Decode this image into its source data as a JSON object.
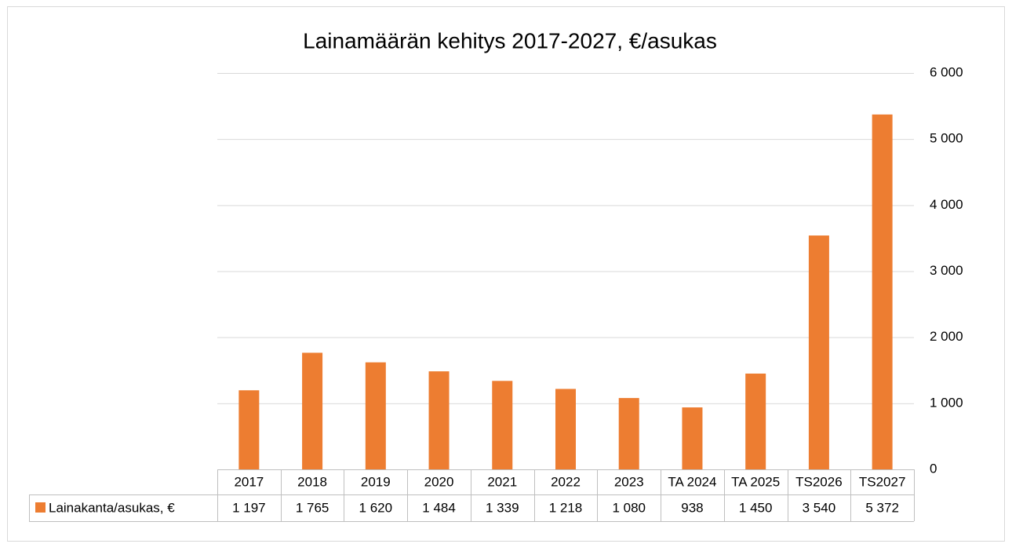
{
  "chart_data": {
    "type": "bar",
    "title": "Lainamäärän kehitys 2017-2027, €/asukas",
    "categories": [
      "2017",
      "2018",
      "2019",
      "2020",
      "2021",
      "2022",
      "2023",
      "TA 2024",
      "TA 2025",
      "TS2026",
      "TS2027"
    ],
    "series": [
      {
        "name": "Lainakanta/asukas, €",
        "color": "#ed7d31",
        "values": [
          1197,
          1765,
          1620,
          1484,
          1339,
          1218,
          1080,
          938,
          1450,
          3540,
          5372
        ],
        "value_labels": [
          "1 197",
          "1 765",
          "1 620",
          "1 484",
          "1 339",
          "1 218",
          "1 080",
          "938",
          "1 450",
          "3 540",
          "5 372"
        ]
      }
    ],
    "ylim": [
      0,
      6000
    ],
    "yticks": [
      0,
      {
        "value": 1000,
        "label": "1 000"
      },
      {
        "value": 2000,
        "label": "2 000"
      },
      {
        "value": 3000,
        "label": "3 000"
      },
      {
        "value": 4000,
        "label": "4 000"
      },
      {
        "value": 5000,
        "label": "5 000"
      },
      {
        "value": 6000,
        "label": "6 000"
      }
    ],
    "grid": true,
    "axis_side": "right",
    "data_table": true
  }
}
